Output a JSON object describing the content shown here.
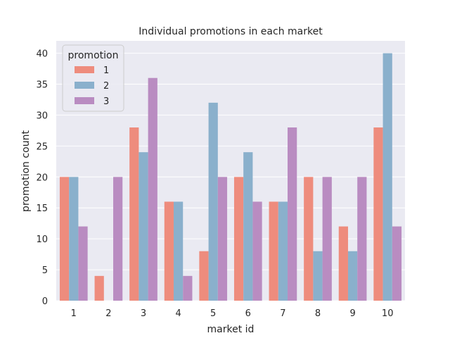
{
  "chart_data": {
    "type": "bar",
    "title": "Individual promotions in each market",
    "xlabel": "market id",
    "ylabel": "promotion count",
    "categories": [
      "1",
      "2",
      "3",
      "4",
      "5",
      "6",
      "7",
      "8",
      "9",
      "10"
    ],
    "ylim": [
      0,
      42
    ],
    "yticks": [
      0,
      5,
      10,
      15,
      20,
      25,
      30,
      35,
      40
    ],
    "grid": true,
    "legend": {
      "title": "promotion",
      "placement": "top-left"
    },
    "series": [
      {
        "name": "1",
        "color": "#ee8c7d",
        "values": [
          20,
          4,
          28,
          16,
          8,
          20,
          16,
          20,
          12,
          28
        ]
      },
      {
        "name": "2",
        "color": "#8ab0cc",
        "values": [
          20,
          0,
          24,
          16,
          32,
          24,
          16,
          8,
          8,
          40
        ]
      },
      {
        "name": "3",
        "color": "#b98cc1",
        "values": [
          12,
          20,
          36,
          4,
          20,
          16,
          28,
          20,
          20,
          12
        ]
      }
    ],
    "background_color": "#eaeaf2",
    "grid_color": "#ffffff"
  }
}
